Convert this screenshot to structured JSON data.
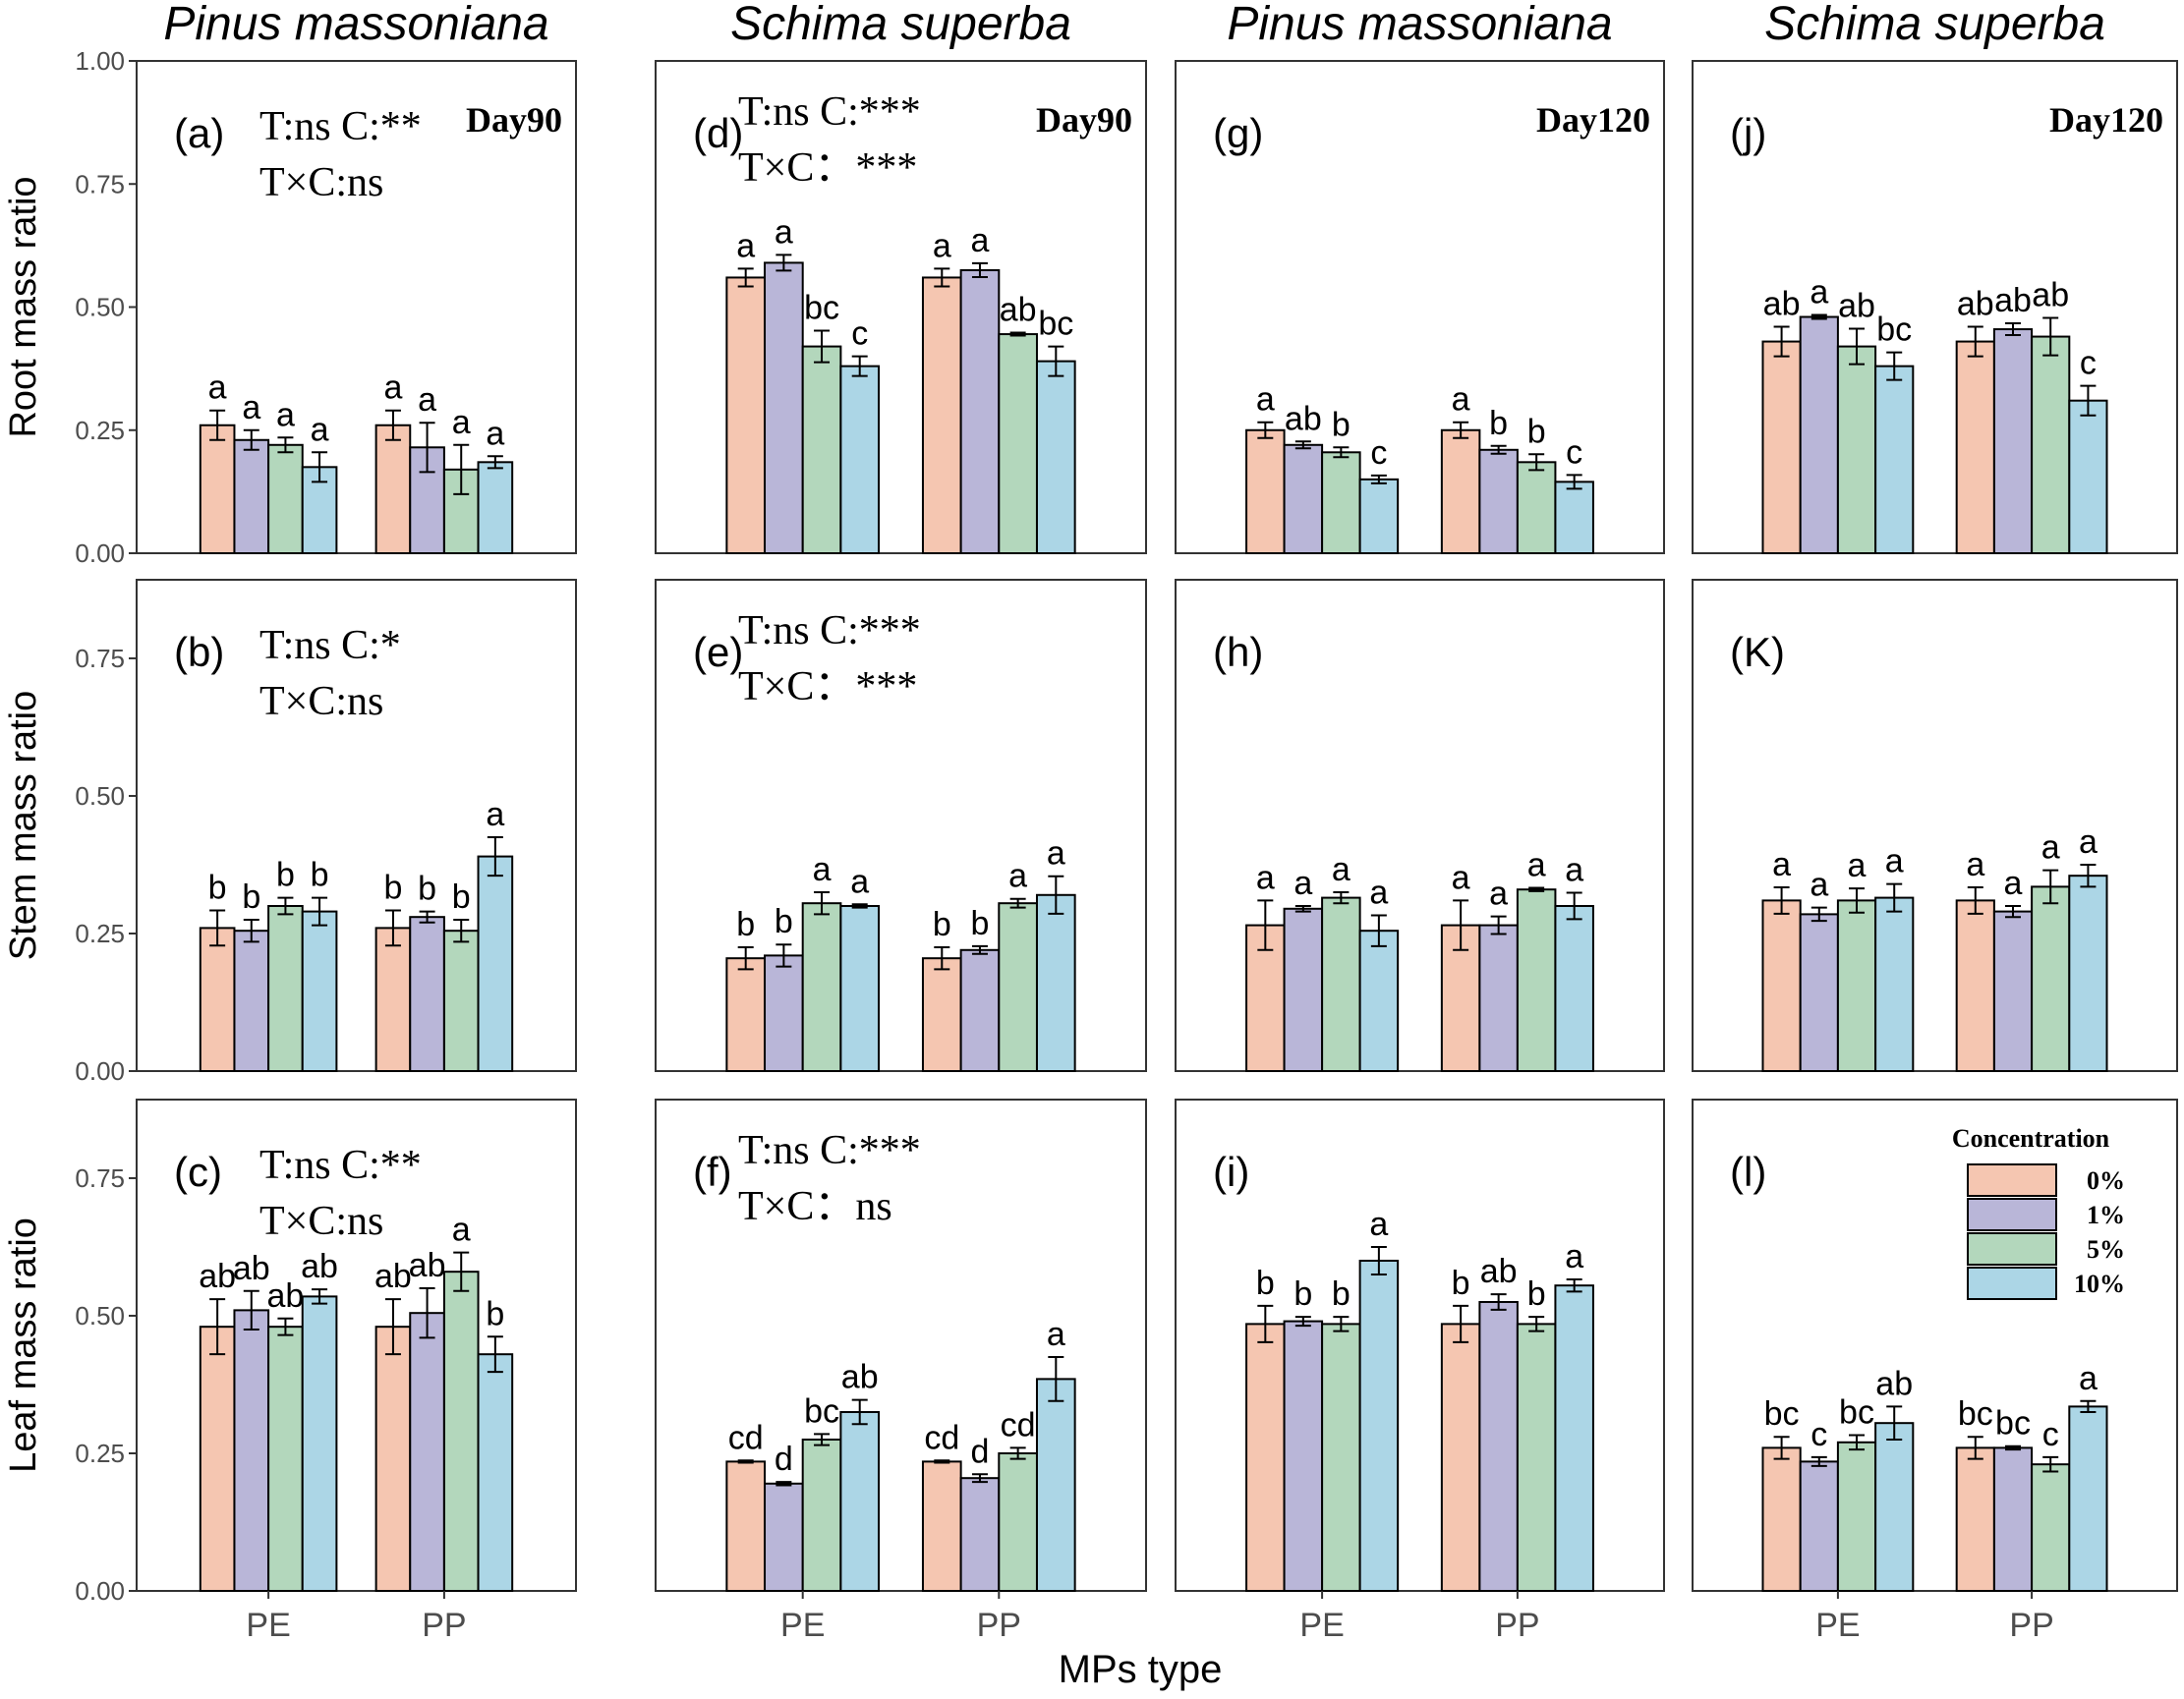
{
  "chart_data": {
    "type": "bar",
    "x_label": "MPs type",
    "categories": [
      "PE",
      "PP"
    ],
    "legend": {
      "title": "Concentration",
      "entries": [
        "0%",
        "1%",
        "5%",
        "10%"
      ],
      "colors": [
        "#f5c6b1",
        "#b9b6d8",
        "#b3d7bc",
        "#acd6e6"
      ]
    },
    "column_titles": [
      "Pinus massoniana",
      "Schima superba",
      "Pinus massoniana",
      "Schima superba"
    ],
    "row_labels": [
      "Root mass ratio",
      "Stem mass ratio",
      "Leaf mass ratio"
    ],
    "y_ticks": [
      [
        "0.00",
        "0.25",
        "0.50",
        "0.75",
        "1.00"
      ],
      [
        "0.00",
        "0.25",
        "0.50",
        "0.75"
      ],
      [
        "0.00",
        "0.25",
        "0.50",
        "0.75"
      ]
    ],
    "panels": [
      {
        "id": "a",
        "row": 0,
        "col": 0,
        "label": "(a)",
        "day": "Day90",
        "stats": [
          "T:ns C:**",
          "T×C:ns"
        ],
        "values": [
          [
            0.26,
            0.23,
            0.22,
            0.175
          ],
          [
            0.26,
            0.215,
            0.17,
            0.185
          ]
        ],
        "errors": [
          [
            0.03,
            0.02,
            0.015,
            0.03
          ],
          [
            0.03,
            0.05,
            0.05,
            0.012
          ]
        ],
        "letters": [
          [
            "a",
            "a",
            "a",
            "a"
          ],
          [
            "a",
            "a",
            "a",
            "a"
          ]
        ]
      },
      {
        "id": "d",
        "row": 0,
        "col": 1,
        "label": "(d)",
        "day": "Day90",
        "stats": [
          "T:ns C:***",
          "T×C：***"
        ],
        "values": [
          [
            0.56,
            0.59,
            0.42,
            0.38
          ],
          [
            0.56,
            0.575,
            0.445,
            0.39
          ]
        ],
        "errors": [
          [
            0.018,
            0.016,
            0.032,
            0.02
          ],
          [
            0.018,
            0.014,
            0.003,
            0.03
          ]
        ],
        "letters": [
          [
            "a",
            "a",
            "bc",
            "c"
          ],
          [
            "a",
            "a",
            "ab",
            "bc"
          ]
        ]
      },
      {
        "id": "g",
        "row": 0,
        "col": 2,
        "label": "(g)",
        "day": "Day120",
        "stats": [],
        "values": [
          [
            0.25,
            0.22,
            0.205,
            0.15
          ],
          [
            0.25,
            0.21,
            0.185,
            0.145
          ]
        ],
        "errors": [
          [
            0.016,
            0.007,
            0.01,
            0.008
          ],
          [
            0.016,
            0.008,
            0.016,
            0.014
          ]
        ],
        "letters": [
          [
            "a",
            "ab",
            "b",
            "c"
          ],
          [
            "a",
            "b",
            "b",
            "c"
          ]
        ]
      },
      {
        "id": "j",
        "row": 0,
        "col": 3,
        "label": "(j)",
        "day": "Day120",
        "stats": [],
        "values": [
          [
            0.43,
            0.48,
            0.42,
            0.38
          ],
          [
            0.43,
            0.455,
            0.44,
            0.31
          ]
        ],
        "errors": [
          [
            0.03,
            0.004,
            0.036,
            0.028
          ],
          [
            0.03,
            0.012,
            0.038,
            0.03
          ]
        ],
        "letters": [
          [
            "ab",
            "a",
            "ab",
            "bc"
          ],
          [
            "ab",
            "ab",
            "ab",
            "c"
          ]
        ]
      },
      {
        "id": "b",
        "row": 1,
        "col": 0,
        "label": "(b)",
        "day": "",
        "stats": [
          "T:ns C:*",
          "T×C:ns"
        ],
        "values": [
          [
            0.26,
            0.255,
            0.3,
            0.29
          ],
          [
            0.26,
            0.28,
            0.255,
            0.39
          ]
        ],
        "errors": [
          [
            0.032,
            0.02,
            0.015,
            0.025
          ],
          [
            0.032,
            0.01,
            0.02,
            0.035
          ]
        ],
        "letters": [
          [
            "b",
            "b",
            "b",
            "b"
          ],
          [
            "b",
            "b",
            "b",
            "a"
          ]
        ]
      },
      {
        "id": "e",
        "row": 1,
        "col": 1,
        "label": "(e)",
        "day": "",
        "stats": [
          "T:ns C:***",
          "T×C：***"
        ],
        "values": [
          [
            0.205,
            0.21,
            0.305,
            0.3
          ],
          [
            0.205,
            0.22,
            0.305,
            0.32
          ]
        ],
        "errors": [
          [
            0.02,
            0.02,
            0.02,
            0.003
          ],
          [
            0.02,
            0.007,
            0.008,
            0.034
          ]
        ],
        "letters": [
          [
            "b",
            "b",
            "a",
            "a"
          ],
          [
            "b",
            "b",
            "a",
            "a"
          ]
        ]
      },
      {
        "id": "h",
        "row": 1,
        "col": 2,
        "label": "(h)",
        "day": "",
        "stats": [],
        "values": [
          [
            0.265,
            0.295,
            0.315,
            0.255
          ],
          [
            0.265,
            0.265,
            0.33,
            0.3
          ]
        ],
        "errors": [
          [
            0.045,
            0.005,
            0.01,
            0.028
          ],
          [
            0.045,
            0.016,
            0.003,
            0.024
          ]
        ],
        "letters": [
          [
            "a",
            "a",
            "a",
            "a"
          ],
          [
            "a",
            "a",
            "a",
            "a"
          ]
        ]
      },
      {
        "id": "k",
        "row": 1,
        "col": 3,
        "label": "(K)",
        "day": "",
        "stats": [],
        "values": [
          [
            0.31,
            0.285,
            0.31,
            0.315
          ],
          [
            0.31,
            0.29,
            0.335,
            0.355
          ]
        ],
        "errors": [
          [
            0.024,
            0.012,
            0.022,
            0.025
          ],
          [
            0.024,
            0.01,
            0.03,
            0.02
          ]
        ],
        "letters": [
          [
            "a",
            "a",
            "a",
            "a"
          ],
          [
            "a",
            "a",
            "a",
            "a"
          ]
        ]
      },
      {
        "id": "c",
        "row": 2,
        "col": 0,
        "label": "(c)",
        "day": "",
        "stats": [
          "T:ns C:**",
          "T×C:ns"
        ],
        "values": [
          [
            0.48,
            0.51,
            0.48,
            0.535
          ],
          [
            0.48,
            0.505,
            0.58,
            0.43
          ]
        ],
        "errors": [
          [
            0.05,
            0.035,
            0.015,
            0.013
          ],
          [
            0.05,
            0.045,
            0.035,
            0.032
          ]
        ],
        "letters": [
          [
            "ab",
            "ab",
            "ab",
            "ab"
          ],
          [
            "ab",
            "ab",
            "a",
            "b"
          ]
        ]
      },
      {
        "id": "f",
        "row": 2,
        "col": 1,
        "label": "(f)",
        "day": "",
        "stats": [
          "T:ns C:***",
          "T×C：ns"
        ],
        "values": [
          [
            0.235,
            0.195,
            0.275,
            0.325
          ],
          [
            0.235,
            0.205,
            0.25,
            0.385
          ]
        ],
        "errors": [
          [
            0.002,
            0.003,
            0.01,
            0.022
          ],
          [
            0.002,
            0.007,
            0.01,
            0.04
          ]
        ],
        "letters": [
          [
            "cd",
            "d",
            "bc",
            "ab"
          ],
          [
            "cd",
            "d",
            "cd",
            "a"
          ]
        ]
      },
      {
        "id": "i",
        "row": 2,
        "col": 2,
        "label": "(i)",
        "day": "",
        "stats": [],
        "values": [
          [
            0.485,
            0.49,
            0.485,
            0.6
          ],
          [
            0.485,
            0.525,
            0.485,
            0.555
          ]
        ],
        "errors": [
          [
            0.033,
            0.008,
            0.013,
            0.025
          ],
          [
            0.033,
            0.014,
            0.013,
            0.011
          ]
        ],
        "letters": [
          [
            "b",
            "b",
            "b",
            "a"
          ],
          [
            "b",
            "ab",
            "b",
            "a"
          ]
        ]
      },
      {
        "id": "l",
        "row": 2,
        "col": 3,
        "label": "(l)",
        "day": "",
        "stats": [],
        "values": [
          [
            0.26,
            0.235,
            0.27,
            0.305
          ],
          [
            0.26,
            0.26,
            0.23,
            0.335
          ]
        ],
        "errors": [
          [
            0.02,
            0.008,
            0.013,
            0.03
          ],
          [
            0.02,
            0.003,
            0.013,
            0.01
          ]
        ],
        "letters": [
          [
            "bc",
            "c",
            "bc",
            "ab"
          ],
          [
            "bc",
            "bc",
            "c",
            "a"
          ]
        ]
      }
    ]
  }
}
